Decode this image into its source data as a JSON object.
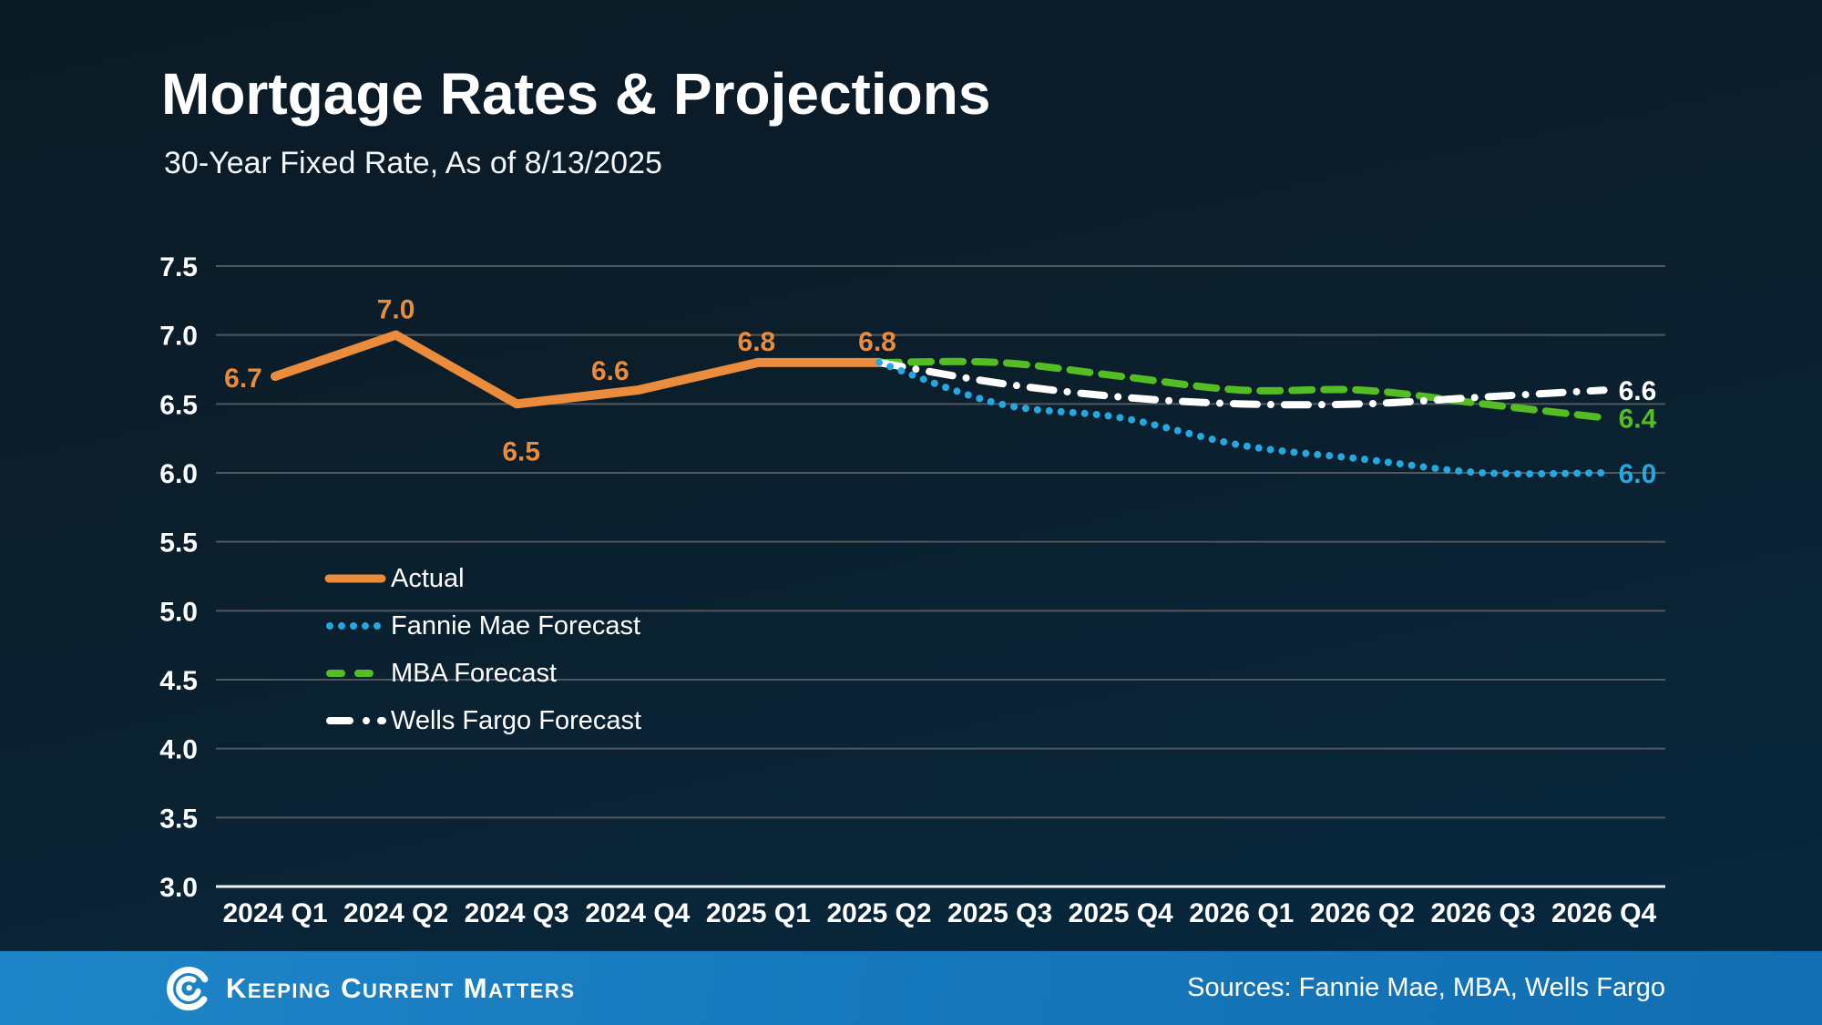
{
  "header": {
    "title": "Mortgage Rates & Projections",
    "subtitle": "30-Year Fixed Rate, As of 8/13/2025"
  },
  "legend": {
    "items": [
      {
        "label": "Actual"
      },
      {
        "label": "Fannie Mae Forecast"
      },
      {
        "label": "MBA Forecast"
      },
      {
        "label": "Wells Fargo Forecast"
      }
    ]
  },
  "footer": {
    "brand": "Keeping Current Matters",
    "sources": "Sources: Fannie Mae, MBA, Wells Fargo"
  },
  "colors": {
    "background_top": "#0b1b26",
    "background_bottom": "#06283f",
    "gridline": "#50575e",
    "axis_line": "#eef1f3",
    "text": "#ffffff",
    "actual_orange": "#EA8C3C",
    "fannie_blue": "#25A8E0",
    "mba_green": "#55BD24",
    "wells_white": "#ffffff",
    "footer_blue": "#1779bd"
  },
  "chart_data": {
    "type": "line",
    "title": "Mortgage Rates & Projections",
    "subtitle": "30-Year Fixed Rate, As of 8/13/2025",
    "xlabel": "",
    "ylabel": "",
    "ylim": [
      3.0,
      7.5
    ],
    "ytick_step": 0.5,
    "grid": true,
    "legend_position": "inside-left",
    "categories": [
      "2024 Q1",
      "2024 Q2",
      "2024 Q3",
      "2024 Q4",
      "2025 Q1",
      "2025 Q2",
      "2025 Q3",
      "2025 Q4",
      "2026 Q1",
      "2026 Q2",
      "2026 Q3",
      "2026 Q4"
    ],
    "series": [
      {
        "name": "Actual",
        "color": "#EA8C3C",
        "style": "solid",
        "smooth": false,
        "values": [
          6.7,
          7.0,
          6.5,
          6.6,
          6.8,
          6.8,
          null,
          null,
          null,
          null,
          null,
          null
        ],
        "point_labels": [
          "6.7",
          "7.0",
          "6.5",
          "6.6",
          "6.8",
          "6.8",
          null,
          null,
          null,
          null,
          null,
          null
        ]
      },
      {
        "name": "MBA Forecast",
        "color": "#55BD24",
        "style": "dashed",
        "smooth": true,
        "values": [
          null,
          null,
          null,
          null,
          null,
          6.8,
          6.8,
          6.7,
          6.6,
          6.6,
          6.5,
          6.4
        ],
        "end_label": "6.4"
      },
      {
        "name": "Wells Fargo Forecast",
        "color": "#ffffff",
        "style": "dashdot",
        "smooth": true,
        "values": [
          null,
          null,
          null,
          null,
          null,
          6.8,
          6.65,
          6.55,
          6.5,
          6.5,
          6.55,
          6.6
        ],
        "end_label": "6.6"
      },
      {
        "name": "Fannie Mae Forecast",
        "color": "#25A8E0",
        "style": "dotted",
        "smooth": true,
        "values": [
          null,
          null,
          null,
          null,
          null,
          6.8,
          6.5,
          6.4,
          6.2,
          6.1,
          6.0,
          6.0
        ],
        "end_label": "6.0"
      }
    ]
  }
}
